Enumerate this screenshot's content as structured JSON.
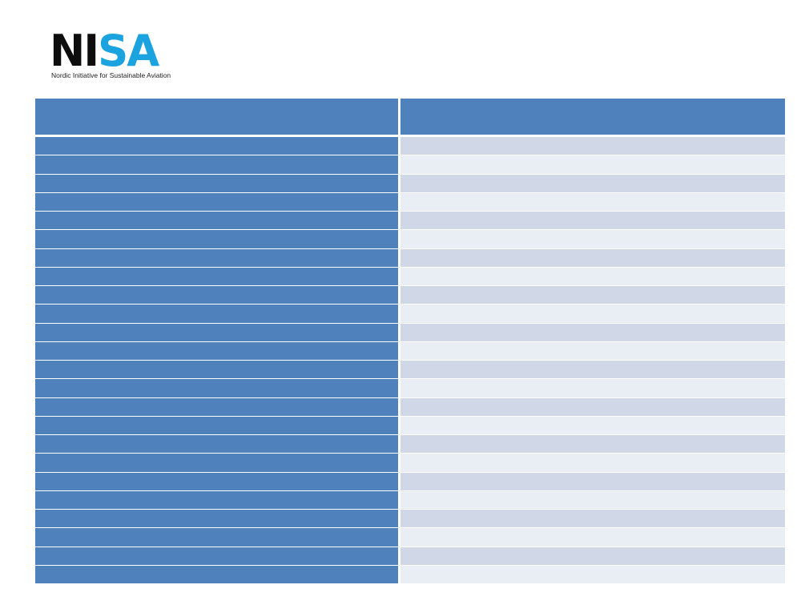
{
  "logo": {
    "mark_dark": "NI",
    "mark_light": "SA",
    "tagline": "Nordic Initiative for Sustainable Aviation"
  }
}
